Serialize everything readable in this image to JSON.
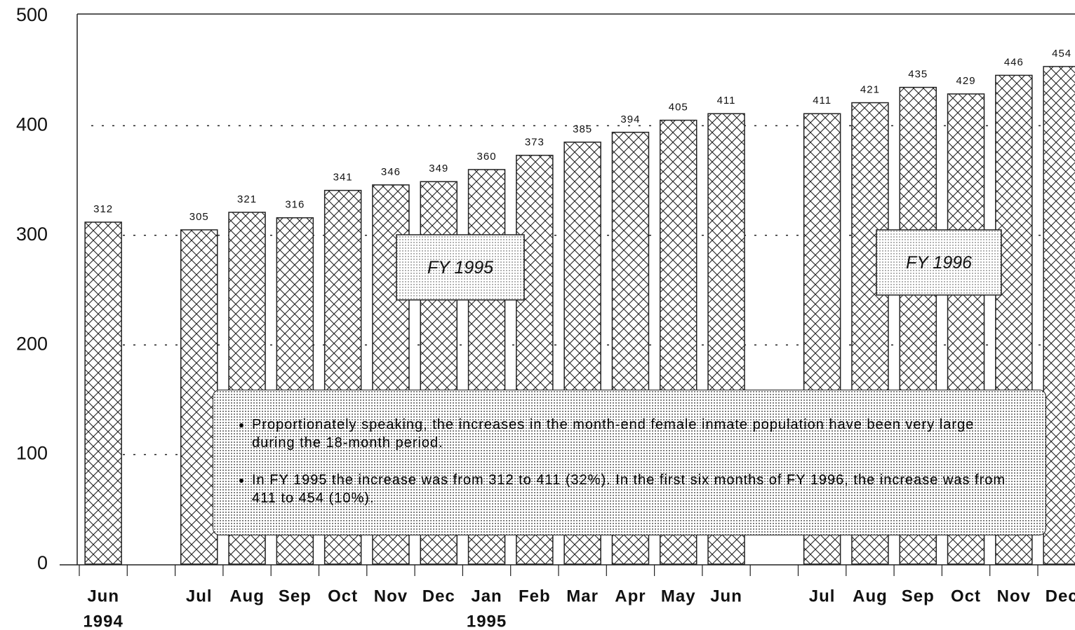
{
  "chart_data": {
    "type": "bar",
    "categories": [
      "Jun",
      null,
      "Jul",
      "Aug",
      "Sep",
      "Oct",
      "Nov",
      "Dec",
      "Jan",
      "Feb",
      "Mar",
      "Apr",
      "May",
      "Jun",
      null,
      "Jul",
      "Aug",
      "Sep",
      "Oct",
      "Nov",
      "Dec"
    ],
    "values": [
      312,
      null,
      305,
      321,
      316,
      341,
      346,
      349,
      360,
      373,
      385,
      394,
      405,
      411,
      null,
      411,
      421,
      435,
      429,
      446,
      454
    ],
    "ylim": [
      0,
      500
    ],
    "yticks": [
      0,
      100,
      200,
      300,
      400,
      500
    ],
    "grid": true,
    "color": "#222222",
    "year_labels": [
      "1994",
      "1995"
    ],
    "annotations": [
      "FY 1995",
      "FY 1996"
    ],
    "notes": [
      "Proportionately speaking, the increases in the month-end female inmate population have been very large during the 18-month period.",
      "In FY 1995 the increase was from 312 to 411 (32%).  In the first six months of FY 1996, the increase was from 411 to 454 (10%)."
    ]
  }
}
